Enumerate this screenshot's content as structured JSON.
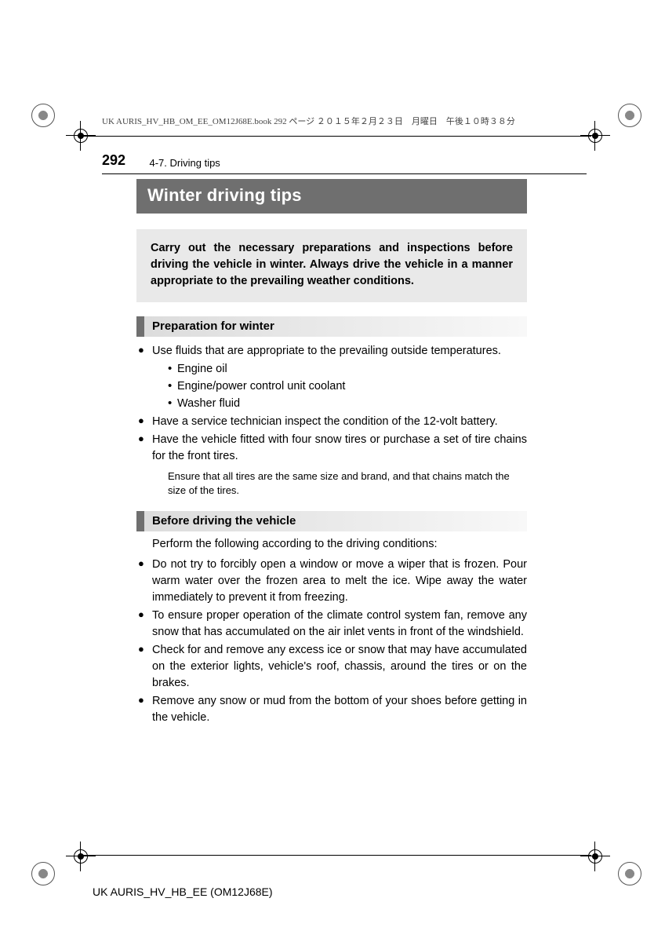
{
  "meta": {
    "header_line": "UK AURIS_HV_HB_OM_EE_OM12J68E.book  292 ページ  ２０１５年２月２３日　月曜日　午後１０時３８分"
  },
  "page": {
    "number": "292",
    "section_ref": "4-7. Driving tips"
  },
  "title": "Winter driving tips",
  "intro": "Carry out the necessary preparations and inspections before driving the vehicle in winter. Always drive the vehicle in a manner appropriate to the prevailing weather conditions.",
  "section1": {
    "heading": "Preparation for winter",
    "b1": "Use fluids that are appropriate to the prevailing outside temperatures.",
    "b1_sub1": "Engine oil",
    "b1_sub2": "Engine/power control unit coolant",
    "b1_sub3": "Washer fluid",
    "b2": "Have a service technician inspect the condition of the 12-volt battery.",
    "b3": "Have the vehicle fitted with four snow tires or purchase a set of tire chains for the front tires.",
    "note": "Ensure that all tires are the same size and brand, and that chains match the size of the tires."
  },
  "section2": {
    "heading": "Before driving the vehicle",
    "intro": "Perform the following according to the driving conditions:",
    "b1": "Do not try to forcibly open a window or move a wiper that is frozen. Pour warm water over the frozen area to melt the ice. Wipe away the water immediately to prevent it from freezing.",
    "b2": "To ensure proper operation of the climate control system fan, remove any snow that has accumulated on the air inlet vents in front of the windshield.",
    "b3": "Check for and remove any excess ice or snow that may have accumulated on the exterior lights, vehicle's roof, chassis, around the tires or on the brakes.",
    "b4": "Remove any snow or mud from the bottom of your shoes before getting in the vehicle."
  },
  "footer": {
    "code": "UK AURIS_HV_HB_EE (OM12J68E)"
  }
}
